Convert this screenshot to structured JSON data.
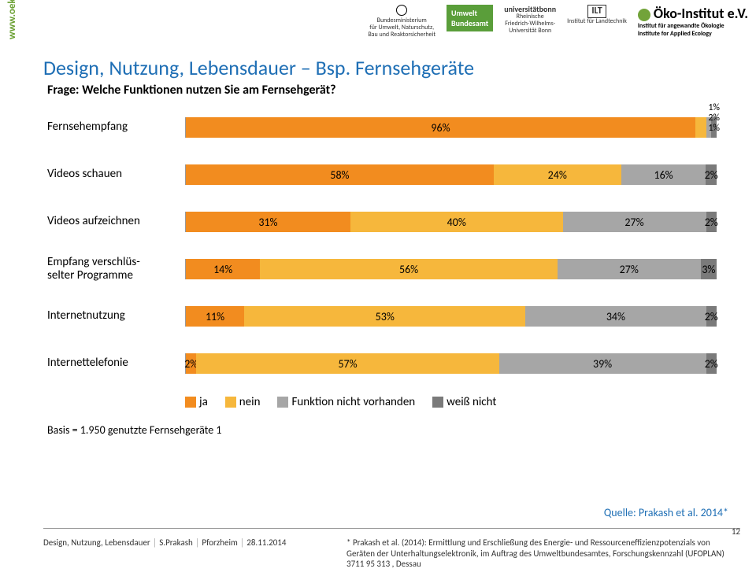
{
  "side_url": "www.oeko.de",
  "slide_title": "Design, Nutzung, Lebensdauer – Bsp. Fernsehgeräte",
  "chart": {
    "type": "stacked-bar-horizontal",
    "question": "Frage: Welche Funktionen nutzen Sie am Fernsehgerät?",
    "colors": {
      "ja": "#f28c1f",
      "nein": "#f6b73c",
      "nicht_vorhanden": "#a6a6a6",
      "weiss_nicht": "#7a7a7a",
      "grid": "#999999",
      "background": "#ffffff"
    },
    "legend_items": [
      {
        "key": "ja",
        "label": "ja"
      },
      {
        "key": "nein",
        "label": "nein"
      },
      {
        "key": "nicht_vorhanden",
        "label": "Funktion nicht vorhanden"
      },
      {
        "key": "weiss_nicht",
        "label": "weiß nicht"
      }
    ],
    "rows": [
      {
        "label": "Fernsehempfang",
        "segments": [
          {
            "key": "ja",
            "value": 96,
            "text": "96%"
          },
          {
            "key": "nein",
            "value": 2,
            "text": "2%",
            "show_inline": false
          },
          {
            "key": "nicht_vorhanden",
            "value": 1,
            "text": "1%",
            "show_inline": false
          },
          {
            "key": "weiss_nicht",
            "value": 1,
            "text": "1%",
            "show_inline": false
          }
        ],
        "tiny_stack": [
          "1%",
          "2%",
          "1%"
        ]
      },
      {
        "label": "Videos schauen",
        "segments": [
          {
            "key": "ja",
            "value": 58,
            "text": "58%"
          },
          {
            "key": "nein",
            "value": 24,
            "text": "24%"
          },
          {
            "key": "nicht_vorhanden",
            "value": 16,
            "text": "16%"
          },
          {
            "key": "weiss_nicht",
            "value": 2,
            "text": "2%"
          }
        ]
      },
      {
        "label": "Videos aufzeichnen",
        "segments": [
          {
            "key": "ja",
            "value": 31,
            "text": "31%"
          },
          {
            "key": "nein",
            "value": 40,
            "text": "40%"
          },
          {
            "key": "nicht_vorhanden",
            "value": 27,
            "text": "27%"
          },
          {
            "key": "weiss_nicht",
            "value": 2,
            "text": "2%"
          }
        ]
      },
      {
        "label": "Empfang verschlüs-\nselter Programme",
        "segments": [
          {
            "key": "ja",
            "value": 14,
            "text": "14%"
          },
          {
            "key": "nein",
            "value": 56,
            "text": "56%"
          },
          {
            "key": "nicht_vorhanden",
            "value": 27,
            "text": "27%"
          },
          {
            "key": "weiss_nicht",
            "value": 3,
            "text": "3%"
          }
        ]
      },
      {
        "label": "Internetnutzung",
        "segments": [
          {
            "key": "ja",
            "value": 11,
            "text": "11%"
          },
          {
            "key": "nein",
            "value": 53,
            "text": "53%"
          },
          {
            "key": "nicht_vorhanden",
            "value": 34,
            "text": "34%"
          },
          {
            "key": "weiss_nicht",
            "value": 2,
            "text": "2%"
          }
        ]
      },
      {
        "label": "Internettelefonie",
        "segments": [
          {
            "key": "ja",
            "value": 2,
            "text": "2%"
          },
          {
            "key": "nein",
            "value": 57,
            "text": "57%"
          },
          {
            "key": "nicht_vorhanden",
            "value": 39,
            "text": "39%"
          },
          {
            "key": "weiss_nicht",
            "value": 2,
            "text": "2%"
          }
        ]
      }
    ],
    "basis": "Basis = 1.950 genutzte Fernsehgeräte 1"
  },
  "quelle": "Quelle: Prakash et al. 2014*",
  "footer_left": {
    "topic": "Design, Nutzung, Lebensdauer",
    "author": "S.Prakash",
    "location": "Pforzheim",
    "date": "28.11.2014"
  },
  "footer_right": "* Prakash et al. (2014):  Ermittlung und Erschließung des Energie- und Ressourceneffizienzpotenzials von Geräten der Unterhaltungselektronik, im Auftrag des Umweltbundesamtes, Forschungskennzahl (UFOPLAN) 3711 95 313 , Dessau",
  "page_num": "12",
  "logos": {
    "bmu": "Bundesministerium\nfür Umwelt, Naturschutz,\nBau und Reaktorsicherheit",
    "uba": "Umwelt\nBundesamt",
    "bonn": "universitätbonn",
    "bonn_sub": "Rheinische\nFriedrich-Wilhelms-\nUniversität Bonn",
    "ilt": "ILT",
    "ilt_sub": "Institut für Landtechnik",
    "oeko_big": "Öko-Institut e.V.",
    "oeko_sub1": "Institut für angewandte Ökologie",
    "oeko_sub2": "Institute for Applied Ecology"
  }
}
